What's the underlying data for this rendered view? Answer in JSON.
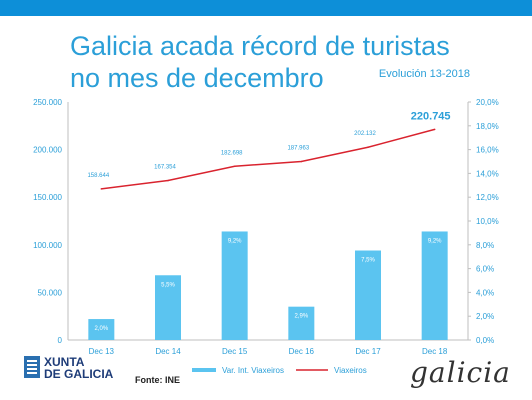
{
  "header": {
    "title_line1": "Galicia acada récord de turistas",
    "title_line2": "no mes de decembro",
    "subtitle": "Evolución 13-2018",
    "bar_color": "#0d8fd8"
  },
  "footer": {
    "logo_text_1": "XUNTA",
    "logo_text_2": "DE GALICIA",
    "source": "Fonte: INE",
    "brand": "galicia"
  },
  "chart_data": {
    "type": "bar",
    "categories": [
      "Dec 13",
      "Dec 14",
      "Dec 15",
      "Dec 16",
      "Dec 17",
      "Dec 18"
    ],
    "series": [
      {
        "name": "Var. Int. Viaxeiros",
        "axis": "left",
        "kind": "bar",
        "color": "#5bc4f0",
        "values": [
          22000,
          68000,
          114000,
          35000,
          94000,
          114000
        ],
        "labels": [
          "2,0%",
          "5,5%",
          "9,2%",
          "2,9%",
          "7,5%",
          "9,2%"
        ]
      },
      {
        "name": "Viaxeiros",
        "axis": "right",
        "kind": "line",
        "color": "#d9232e",
        "values": [
          12.7,
          13.4,
          14.6,
          15.0,
          16.2,
          17.7
        ],
        "labels": [
          "158.644",
          "167.354",
          "182.698",
          "187.963",
          "202.132",
          "220.745"
        ]
      }
    ],
    "y_left": {
      "min": 0,
      "max": 250000,
      "ticks": [
        "0",
        "50.000",
        "100.000",
        "150.000",
        "200.000",
        "250.000"
      ]
    },
    "y_right": {
      "min": 0,
      "max": 20,
      "ticks": [
        "0,0%",
        "2,0%",
        "4,0%",
        "6,0%",
        "8,0%",
        "10,0%",
        "12,0%",
        "14,0%",
        "16,0%",
        "18,0%",
        "20,0%"
      ]
    },
    "grid": false,
    "legend": "bottom"
  }
}
